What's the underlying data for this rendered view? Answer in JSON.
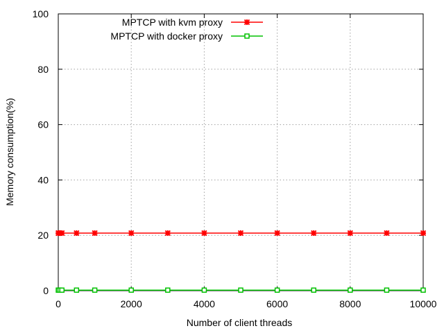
{
  "chart_data": {
    "type": "line",
    "xlabel": "Number of client threads",
    "ylabel": "Memory consumption(%)",
    "xlim": [
      0,
      10000
    ],
    "ylim": [
      0,
      100
    ],
    "xticks": [
      0,
      2000,
      4000,
      6000,
      8000,
      10000
    ],
    "yticks": [
      0,
      20,
      40,
      60,
      80,
      100
    ],
    "grid": true,
    "legend_position": "top-left",
    "series": [
      {
        "name": "MPTCP with kvm proxy",
        "color": "#ff0000",
        "marker": "star",
        "x": [
          1,
          10,
          50,
          100,
          500,
          1000,
          2000,
          3000,
          4000,
          5000,
          6000,
          7000,
          8000,
          9000,
          10000
        ],
        "y": [
          20.8,
          20.8,
          20.8,
          20.8,
          20.8,
          20.8,
          20.8,
          20.8,
          20.8,
          20.8,
          20.8,
          20.8,
          20.8,
          20.8,
          20.8
        ]
      },
      {
        "name": "MPTCP with docker proxy",
        "color": "#00c000",
        "marker": "square",
        "x": [
          1,
          10,
          50,
          100,
          500,
          1000,
          2000,
          3000,
          4000,
          5000,
          6000,
          7000,
          8000,
          9000,
          10000
        ],
        "y": [
          0.2,
          0.2,
          0.2,
          0.2,
          0.2,
          0.2,
          0.2,
          0.2,
          0.2,
          0.2,
          0.2,
          0.2,
          0.2,
          0.2,
          0.2
        ]
      }
    ]
  }
}
